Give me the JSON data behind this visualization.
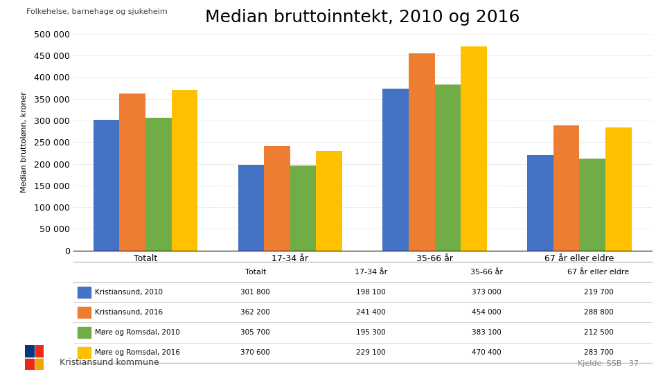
{
  "title": "Median bruttoinntekt, 2010 og 2016",
  "ylabel": "Median bruttolønn, kroner",
  "categories": [
    "Totalt",
    "17-34 år",
    "35-66 år",
    "67 år eller eldre"
  ],
  "series": [
    {
      "label": "Kristiansund, 2010",
      "color": "#4472C4",
      "values": [
        301800,
        198100,
        373000,
        219700
      ]
    },
    {
      "label": "Kristiansund, 2016",
      "color": "#ED7D31",
      "values": [
        362200,
        241400,
        454000,
        288800
      ]
    },
    {
      "label": "Møre og Romsdal, 2010",
      "color": "#70AD47",
      "values": [
        305700,
        195300,
        383100,
        212500
      ]
    },
    {
      "label": "Møre og Romsdal, 2016",
      "color": "#FFC000",
      "values": [
        370600,
        229100,
        470400,
        283700
      ]
    }
  ],
  "ylim": [
    0,
    500000
  ],
  "yticks": [
    0,
    50000,
    100000,
    150000,
    200000,
    250000,
    300000,
    350000,
    400000,
    450000,
    500000
  ],
  "background_color": "#FFFFFF",
  "header_text": "Folkehelse, barnehage og sjukeheim",
  "footer_left": "Kristiansund kommune",
  "footer_right": "Kjelde: SSB   37",
  "logo_color_1": "#E8291C",
  "logo_color_2": "#003882",
  "grid_color": "#BFBFBF",
  "title_fontsize": 18,
  "axis_fontsize": 9,
  "label_fontsize": 8
}
